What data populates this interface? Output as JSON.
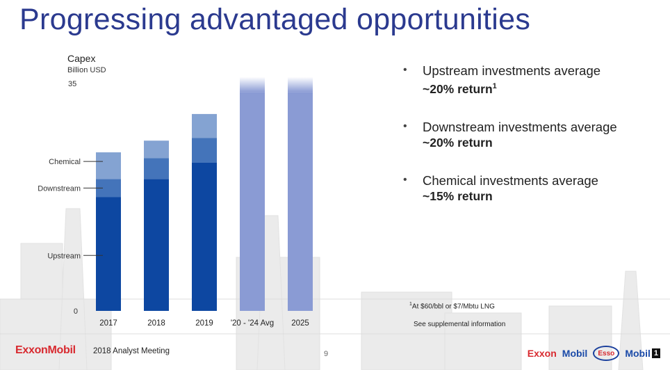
{
  "slide": {
    "title": "Progressing advantaged opportunities",
    "page_number": "9",
    "footer": {
      "company_logo": "ExxonMobil",
      "event": "2018 Analyst Meeting"
    },
    "brands": {
      "exxon": "Exxon",
      "mobil": "Mobil",
      "esso": "Esso",
      "mobil1_text": "Mobil",
      "mobil1_badge": "1"
    }
  },
  "chart_data": {
    "type": "bar",
    "ylabel": "Capex",
    "yunit": "Billion USD",
    "ylim": [
      0,
      35
    ],
    "yticks": [
      "0",
      "35"
    ],
    "categories": [
      "2017",
      "2018",
      "2019",
      "'20 - '24 Avg",
      "2025"
    ],
    "series": [
      {
        "name": "Upstream",
        "color": "#0d47a1",
        "values": [
          17.5,
          20.3,
          22.8,
          null,
          null
        ]
      },
      {
        "name": "Downstream",
        "color": "#4474ba",
        "values": [
          2.8,
          3.2,
          3.8,
          null,
          null
        ]
      },
      {
        "name": "Chemical",
        "color": "#84a3d2",
        "values": [
          4.1,
          2.7,
          3.7,
          null,
          null
        ]
      },
      {
        "name": "",
        "color": "#8a9bd4",
        "values": [
          null,
          null,
          null,
          36,
          36
        ]
      }
    ],
    "stacked": true,
    "segment_labels": [
      "Chemical",
      "Downstream",
      "Upstream"
    ],
    "grid": false
  },
  "bullets": [
    {
      "text": "Upstream investments average",
      "emph": "~20% return",
      "sup": "1"
    },
    {
      "text": "Downstream investments average",
      "emph": "~20% return",
      "sup": ""
    },
    {
      "text": "Chemical investments average",
      "emph": "~15% return",
      "sup": ""
    }
  ],
  "footnote": {
    "sup": "1",
    "text": "At $60/bbl or $7/Mbtu LNG"
  },
  "supplemental": "See supplemental information",
  "colors": {
    "title": "#2b3a8f",
    "brand_red": "#d8292f",
    "brand_blue": "#1a4aa8"
  }
}
